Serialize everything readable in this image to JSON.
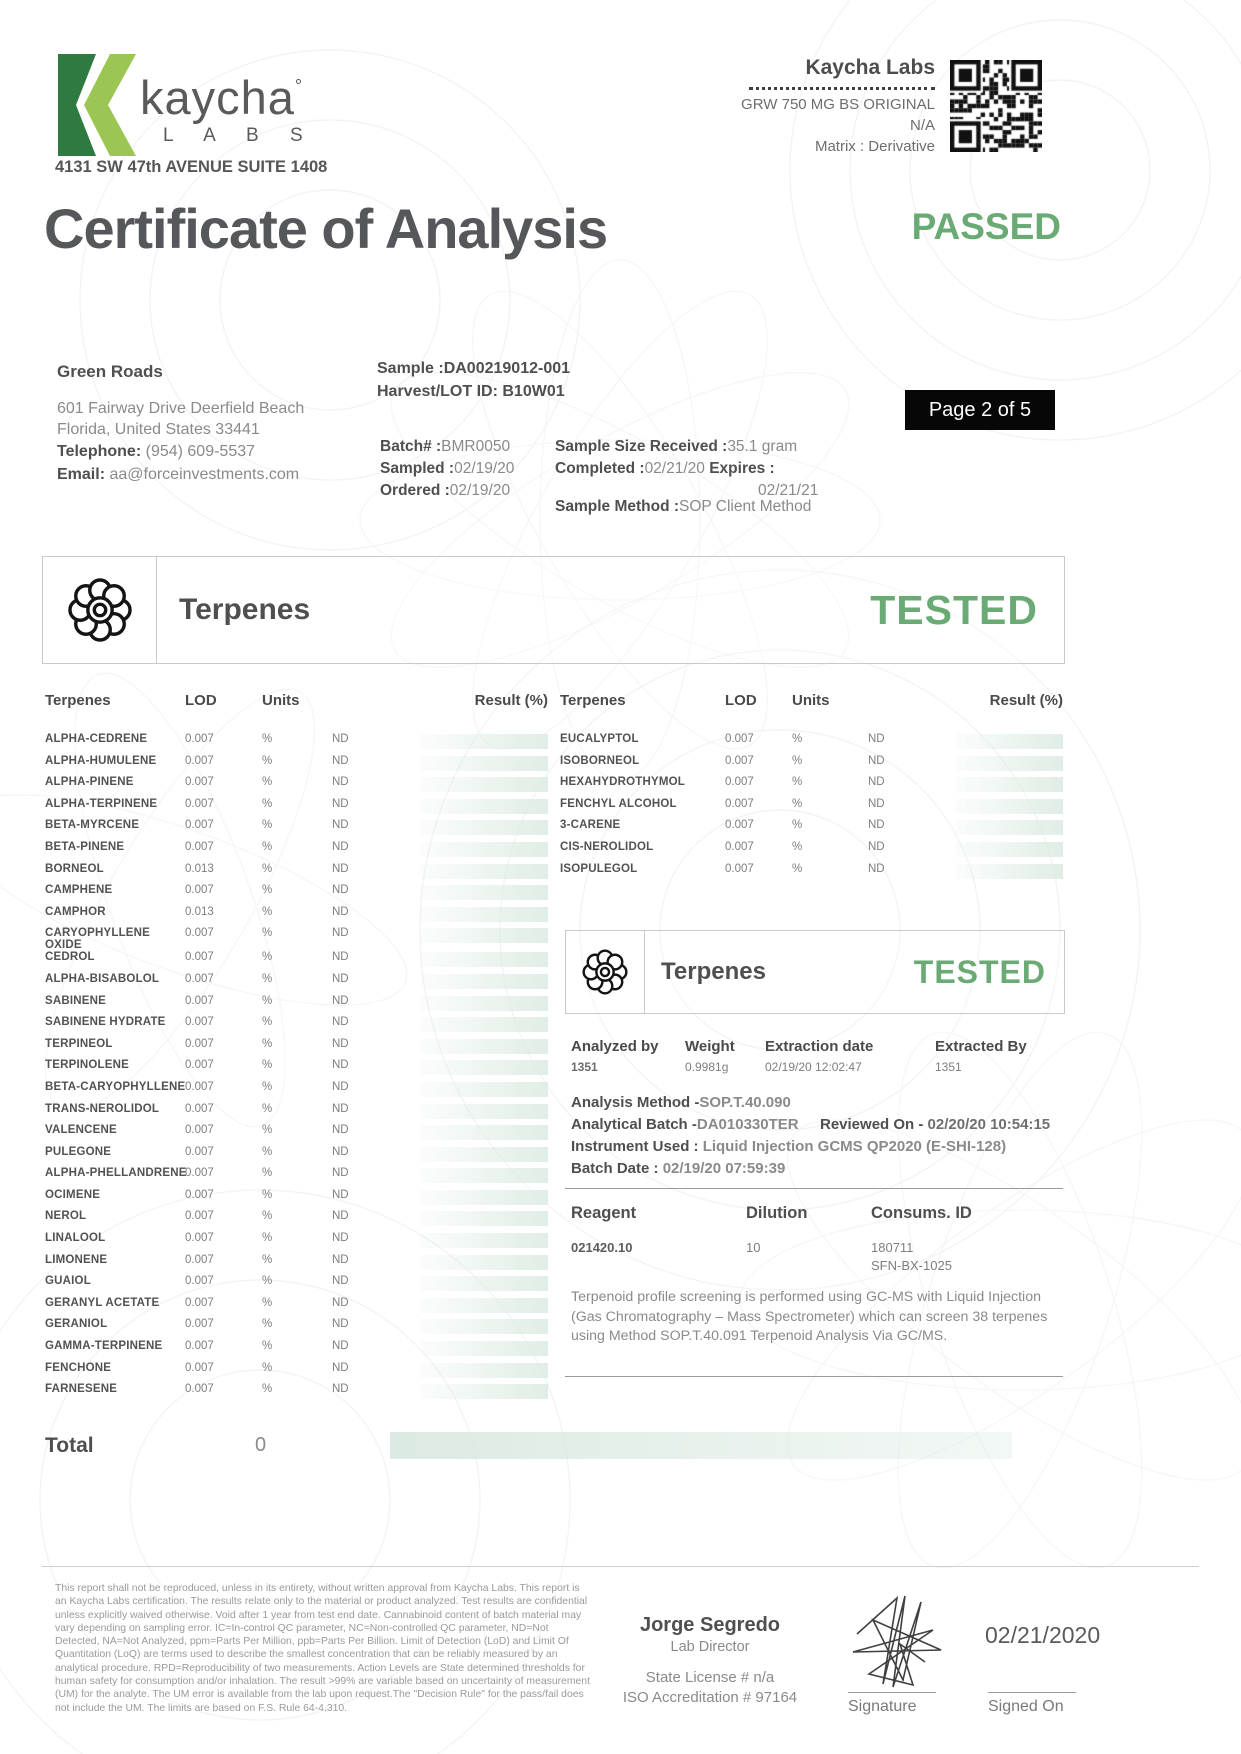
{
  "logo": {
    "word": "kaycha",
    "degree": "°",
    "sub": "L A B S",
    "address": "4131 SW 47th AVENUE SUITE 1408"
  },
  "labinfo": {
    "name": "Kaycha Labs",
    "product": "GRW 750 MG BS ORIGINAL",
    "line2": "N/A",
    "matrix": "Matrix : Derivative"
  },
  "title": {
    "text": "Certificate of Analysis",
    "status": "PASSED"
  },
  "client": {
    "name": "Green Roads",
    "address_line1": "601 Fairway Drive Deerfield Beach",
    "address_line2": "Florida, United States 33441",
    "telephone_label": "Telephone:",
    "telephone": "(954) 609-5537",
    "email_label": "Email:",
    "email": "aa@forceinvestments.com"
  },
  "sample": {
    "sample_label": "Sample :",
    "sample_id": "DA00219012-001",
    "harvest_label": "Harvest/LOT ID:",
    "harvest_id": "B10W01",
    "batch_label": "Batch# :",
    "batch": "BMR0050",
    "sampled_label": "Sampled :",
    "sampled": "02/19/20",
    "ordered_label": "Ordered :",
    "ordered": "02/19/20",
    "size_label": "Sample Size Received :",
    "size": "35.1 gram",
    "completed_label": "Completed :",
    "completed": "02/21/20",
    "expires_label": "Expires :",
    "expires": "02/21/21",
    "method_label": "Sample Method :",
    "method": "SOP Client Method",
    "page_badge": "Page 2 of 5"
  },
  "section": {
    "title": "Terpenes",
    "status": "TESTED"
  },
  "table": {
    "headers": {
      "name": "Terpenes",
      "lod": "LOD",
      "units": "Units",
      "result": "Result (%)"
    },
    "left_rows": [
      {
        "name": "ALPHA-CEDRENE",
        "lod": "0.007",
        "units": "%",
        "result": "ND"
      },
      {
        "name": "ALPHA-HUMULENE",
        "lod": "0.007",
        "units": "%",
        "result": "ND"
      },
      {
        "name": "ALPHA-PINENE",
        "lod": "0.007",
        "units": "%",
        "result": "ND"
      },
      {
        "name": "ALPHA-TERPINENE",
        "lod": "0.007",
        "units": "%",
        "result": "ND"
      },
      {
        "name": "BETA-MYRCENE",
        "lod": "0.007",
        "units": "%",
        "result": "ND"
      },
      {
        "name": "BETA-PINENE",
        "lod": "0.007",
        "units": "%",
        "result": "ND"
      },
      {
        "name": "BORNEOL",
        "lod": "0.013",
        "units": "%",
        "result": "ND"
      },
      {
        "name": "CAMPHENE",
        "lod": "0.007",
        "units": "%",
        "result": "ND"
      },
      {
        "name": "CAMPHOR",
        "lod": "0.013",
        "units": "%",
        "result": "ND"
      },
      {
        "name": "CARYOPHYLLENE OXIDE",
        "lod": "0.007",
        "units": "%",
        "result": "ND"
      },
      {
        "name": "CEDROL",
        "lod": "0.007",
        "units": "%",
        "result": "ND"
      },
      {
        "name": "ALPHA-BISABOLOL",
        "lod": "0.007",
        "units": "%",
        "result": "ND"
      },
      {
        "name": "SABINENE",
        "lod": "0.007",
        "units": "%",
        "result": "ND"
      },
      {
        "name": "SABINENE HYDRATE",
        "lod": "0.007",
        "units": "%",
        "result": "ND"
      },
      {
        "name": "TERPINEOL",
        "lod": "0.007",
        "units": "%",
        "result": "ND"
      },
      {
        "name": "TERPINOLENE",
        "lod": "0.007",
        "units": "%",
        "result": "ND"
      },
      {
        "name": "BETA-CARYOPHYLLENE",
        "lod": "0.007",
        "units": "%",
        "result": "ND"
      },
      {
        "name": "TRANS-NEROLIDOL",
        "lod": "0.007",
        "units": "%",
        "result": "ND"
      },
      {
        "name": "VALENCENE",
        "lod": "0.007",
        "units": "%",
        "result": "ND"
      },
      {
        "name": "PULEGONE",
        "lod": "0.007",
        "units": "%",
        "result": "ND"
      },
      {
        "name": "ALPHA-PHELLANDRENE",
        "lod": "0.007",
        "units": "%",
        "result": "ND"
      },
      {
        "name": "OCIMENE",
        "lod": "0.007",
        "units": "%",
        "result": "ND"
      },
      {
        "name": "NEROL",
        "lod": "0.007",
        "units": "%",
        "result": "ND"
      },
      {
        "name": "LINALOOL",
        "lod": "0.007",
        "units": "%",
        "result": "ND"
      },
      {
        "name": "LIMONENE",
        "lod": "0.007",
        "units": "%",
        "result": "ND"
      },
      {
        "name": "GUAIOL",
        "lod": "0.007",
        "units": "%",
        "result": "ND"
      },
      {
        "name": "GERANYL ACETATE",
        "lod": "0.007",
        "units": "%",
        "result": "ND"
      },
      {
        "name": "GERANIOL",
        "lod": "0.007",
        "units": "%",
        "result": "ND"
      },
      {
        "name": "GAMMA-TERPINENE",
        "lod": "0.007",
        "units": "%",
        "result": "ND"
      },
      {
        "name": "FENCHONE",
        "lod": "0.007",
        "units": "%",
        "result": "ND"
      },
      {
        "name": "FARNESENE",
        "lod": "0.007",
        "units": "%",
        "result": "ND"
      }
    ],
    "right_rows": [
      {
        "name": "EUCALYPTOL",
        "lod": "0.007",
        "units": "%",
        "result": "ND"
      },
      {
        "name": "ISOBORNEOL",
        "lod": "0.007",
        "units": "%",
        "result": "ND"
      },
      {
        "name": "HEXAHYDROTHYMOL",
        "lod": "0.007",
        "units": "%",
        "result": "ND"
      },
      {
        "name": "FENCHYL ALCOHOL",
        "lod": "0.007",
        "units": "%",
        "result": "ND"
      },
      {
        "name": "3-CARENE",
        "lod": "0.007",
        "units": "%",
        "result": "ND"
      },
      {
        "name": "CIS-NEROLIDOL",
        "lod": "0.007",
        "units": "%",
        "result": "ND"
      },
      {
        "name": "ISOPULEGOL",
        "lod": "0.007",
        "units": "%",
        "result": "ND"
      }
    ],
    "total_label": "Total",
    "total_value": "0"
  },
  "analysis": {
    "box_title": "Terpenes",
    "box_status": "TESTED",
    "analyzed_by_label": "Analyzed by",
    "analyzed_by": "1351",
    "weight_label": "Weight",
    "weight": "0.9981g",
    "extraction_label": "Extraction date",
    "extraction": "02/19/20 12:02:47",
    "extracted_by_label": "Extracted By",
    "extracted_by": "1351",
    "method_label": "Analysis Method -",
    "method": "SOP.T.40.090",
    "batch_label": "Analytical Batch -",
    "batch": "DA010330TER",
    "reviewed_label": "Reviewed On - ",
    "reviewed": "02/20/20 10:54:15",
    "instrument_label": "Instrument Used : ",
    "instrument": "Liquid Injection GCMS QP2020 (E-SHI-128)",
    "batch_date_label": "Batch Date : ",
    "batch_date": "02/19/20 07:59:39",
    "reagent_header": "Reagent",
    "dilution_header": "Dilution",
    "consums_header": "Consums. ID",
    "reagent": "021420.10",
    "dilution": "10",
    "consums_1": "180711",
    "consums_2": "SFN-BX-1025",
    "note": "Terpenoid profile screening is performed using GC-MS with Liquid Injection (Gas Chromatography – Mass Spectrometer) which can screen 38 terpenes using Method SOP.T.40.091 Terpenoid Analysis Via GC/MS."
  },
  "footer": {
    "disclaimer": "This report shall not be reproduced, unless in its entirety, without written approval from Kaycha Labs. This report is an Kaycha Labs certification. The results relate only to the material or product analyzed. Test results are confidential unless explicitly waived otherwise. Void after 1 year from test end date. Cannabinoid content of batch material may vary depending on sampling error. IC=In-control QC parameter, NC=Non-controlled QC parameter, ND=Not Detected, NA=Not Analyzed, ppm=Parts Per Million, ppb=Parts Per Billion. Limit of Detection (LoD) and Limit Of Quantitation (LoQ) are terms used to describe the smallest concentration that can be reliably measured by an analytical procedure. RPD=Reproducibility of two measurements. Action Levels are State determined thresholds for human safety for consumption and/or inhalation. The result >99% are variable based on uncertainty of measurement (UM) for the analyte. The UM error is available from the lab upon request.The \"Decision Rule\" for the pass/fail does not include the UM. The limits are based on F.S. Rule 64-4.310.",
    "director_name": "Jorge Segredo",
    "director_title": "Lab Director",
    "license": "State License # n/a",
    "accreditation": "ISO Accreditation # 97164",
    "signature_label": "Signature",
    "signed_on_label": "Signed On",
    "signed_date": "02/21/2020"
  },
  "colors": {
    "accent_green": "#6aaa74",
    "logo_dark_green": "#2e7a40",
    "logo_light_green": "#9cc653",
    "result_bar_green": "#dbeae2",
    "badge_black": "#070707"
  }
}
